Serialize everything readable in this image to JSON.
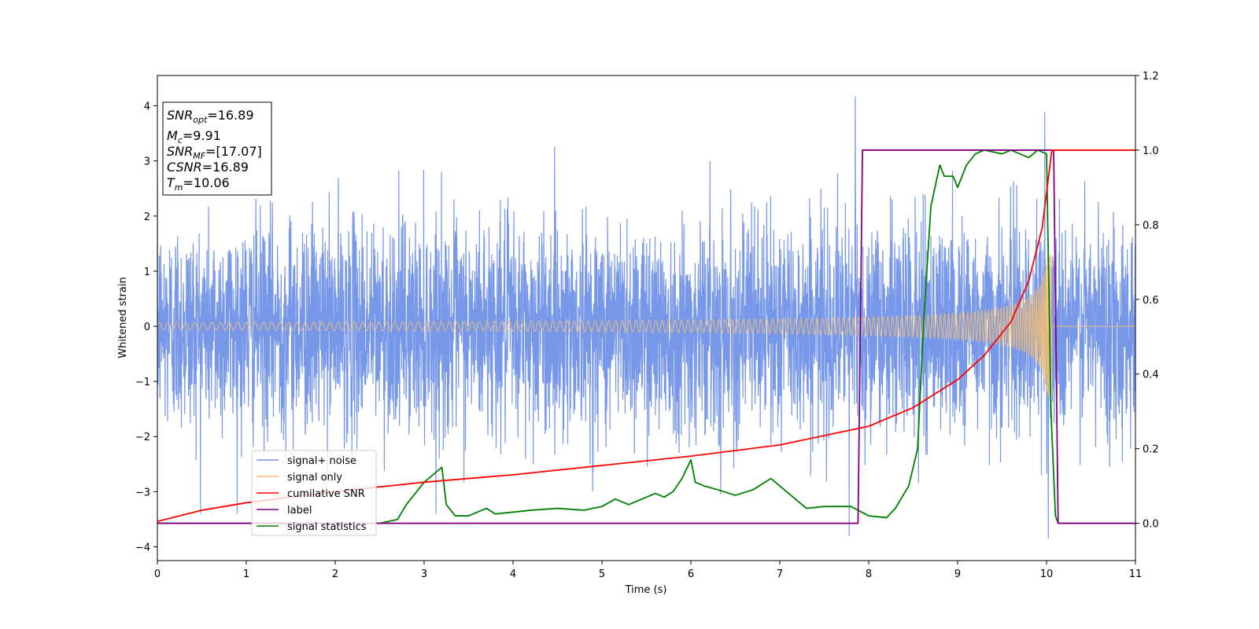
{
  "chart_data": {
    "type": "line",
    "xlabel": "Time (s)",
    "ylabel": "Whitened strain",
    "xlim": [
      0,
      11
    ],
    "ylim": [
      -4.25,
      4.55
    ],
    "y2lim": [
      -0.1,
      1.2
    ],
    "x_ticks": [
      "0",
      "1",
      "2",
      "3",
      "4",
      "5",
      "6",
      "7",
      "8",
      "9",
      "10",
      "11"
    ],
    "y_ticks": [
      "−4",
      "−3",
      "−2",
      "−1",
      "0",
      "1",
      "2",
      "3",
      "4"
    ],
    "y2_ticks": [
      "0.0",
      "0.2",
      "0.4",
      "0.6",
      "0.8",
      "1.0",
      "1.2"
    ],
    "grid": false,
    "legend_position": "lower-left",
    "info_box": {
      "snr_opt": {
        "sym": "SNR",
        "sub": "opt",
        "value": "=16.89"
      },
      "mc": {
        "sym": "M",
        "sub": "c",
        "value": "=9.91"
      },
      "snr_mf": {
        "sym": "SNR",
        "sub": "MF",
        "value": "=[17.07]"
      },
      "csnr": {
        "sym": "CSNR",
        "sub": "",
        "value": "=16.89"
      },
      "tm": {
        "sym": "T",
        "sub": "m",
        "value": "=10.06"
      }
    },
    "series": [
      {
        "name": "signal+ noise",
        "color": "#7091e8",
        "axis": "left",
        "description_values": {
          "noise_std": 0.95,
          "spikes": [
            [
              7.85,
              4.17
            ],
            [
              9.98,
              3.88
            ],
            [
              10.02,
              -3.85
            ],
            [
              7.78,
              -3.8
            ]
          ]
        }
      },
      {
        "name": "signal only",
        "color": "#f5be73",
        "axis": "left",
        "chirp": {
          "start_amplitude": 0.07,
          "peak_time": 10.06,
          "peak_amplitude": 1.3,
          "start_frequency_hz": 10
        }
      },
      {
        "name": "cumilative SNR",
        "color": "#ff0000",
        "axis": "right",
        "x": [
          0,
          0.5,
          1,
          2,
          3,
          4,
          5,
          6,
          7,
          7.5,
          8,
          8.5,
          9,
          9.3,
          9.6,
          9.8,
          9.95,
          10.06,
          11
        ],
        "y": [
          0.005,
          0.035,
          0.055,
          0.085,
          0.11,
          0.13,
          0.155,
          0.18,
          0.21,
          0.235,
          0.26,
          0.31,
          0.385,
          0.45,
          0.54,
          0.65,
          0.79,
          1.0,
          1.0
        ]
      },
      {
        "name": "label",
        "color": "#800080",
        "axis": "right",
        "x": [
          0,
          7.88,
          7.93,
          10.08,
          10.13,
          11
        ],
        "y": [
          0,
          0,
          1,
          1,
          0,
          0
        ]
      },
      {
        "name": "signal statistics",
        "color": "#008000",
        "axis": "right",
        "x": [
          0,
          2.0,
          2.5,
          2.7,
          2.8,
          2.9,
          3.0,
          3.1,
          3.2,
          3.25,
          3.35,
          3.5,
          3.7,
          3.8,
          4.0,
          4.2,
          4.5,
          4.8,
          5.0,
          5.15,
          5.3,
          5.6,
          5.7,
          5.8,
          5.9,
          6.0,
          6.05,
          6.15,
          6.3,
          6.5,
          6.7,
          6.9,
          7.1,
          7.3,
          7.5,
          7.8,
          8.0,
          8.2,
          8.3,
          8.45,
          8.55,
          8.62,
          8.7,
          8.8,
          8.85,
          8.95,
          9.0,
          9.1,
          9.2,
          9.3,
          9.5,
          9.6,
          9.8,
          9.9,
          10.0,
          10.05,
          10.1,
          10.13,
          11
        ],
        "y": [
          0.0,
          0.0,
          0.0,
          0.01,
          0.05,
          0.08,
          0.11,
          0.13,
          0.15,
          0.05,
          0.02,
          0.02,
          0.04,
          0.025,
          0.03,
          0.035,
          0.04,
          0.035,
          0.045,
          0.065,
          0.05,
          0.08,
          0.07,
          0.085,
          0.12,
          0.17,
          0.11,
          0.1,
          0.09,
          0.075,
          0.09,
          0.12,
          0.08,
          0.04,
          0.045,
          0.045,
          0.02,
          0.015,
          0.04,
          0.1,
          0.2,
          0.55,
          0.85,
          0.96,
          0.93,
          0.93,
          0.9,
          0.96,
          0.99,
          1.0,
          0.99,
          1.0,
          0.98,
          1.0,
          0.99,
          0.3,
          0.02,
          0.0,
          0.0
        ]
      }
    ]
  }
}
